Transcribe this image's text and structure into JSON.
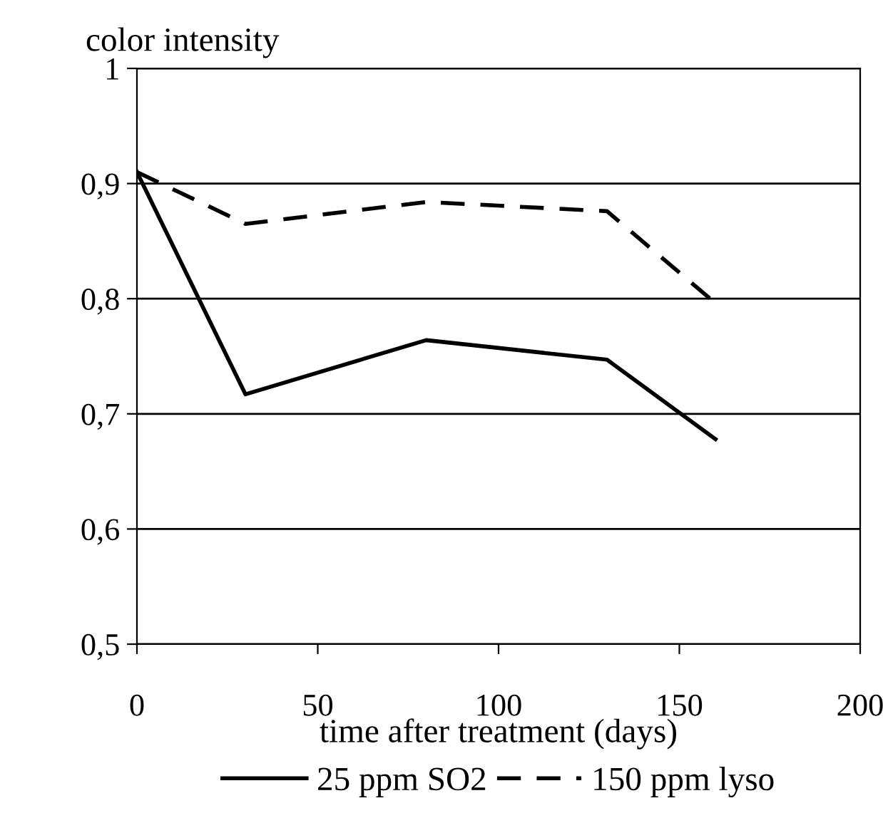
{
  "chart_data": {
    "type": "line",
    "ylabel": "color intensity",
    "xlabel": "time after treatment (days)",
    "xlim": [
      0,
      200
    ],
    "xticks": [
      0,
      50,
      100,
      150,
      200
    ],
    "ylim": [
      0.5,
      1
    ],
    "yticks": [
      {
        "value": 0.5,
        "label": "0,5"
      },
      {
        "value": 0.6,
        "label": "0,6"
      },
      {
        "value": 0.7,
        "label": "0,7"
      },
      {
        "value": 0.8,
        "label": "0,8"
      },
      {
        "value": 0.9,
        "label": "0,9"
      },
      {
        "value": 1,
        "label": "1"
      }
    ],
    "grid": "y",
    "legend": "bottom",
    "marker": "none",
    "series": [
      {
        "name": "25 ppm SO2",
        "color": "#000000",
        "line_style": "solid",
        "x": [
          0,
          30,
          80,
          130,
          160
        ],
        "values": [
          0.91,
          0.717,
          0.764,
          0.747,
          0.678
        ]
      },
      {
        "name": "150 ppm lyso",
        "color": "#000000",
        "line_style": "dashed",
        "x": [
          0,
          30,
          80,
          130,
          160
        ],
        "values": [
          0.91,
          0.865,
          0.884,
          0.876,
          0.796
        ]
      }
    ]
  }
}
